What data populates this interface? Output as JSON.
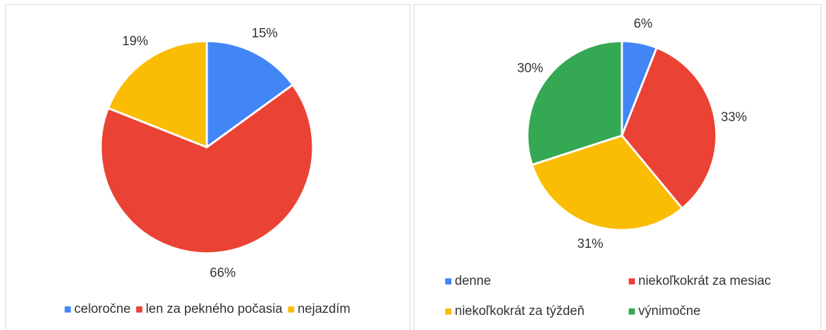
{
  "chart_data": [
    {
      "type": "pie",
      "legend": "bottom",
      "categories": [
        "celoročne",
        "len za pekného počasia",
        "nejazdím"
      ],
      "values": [
        15,
        66,
        19
      ],
      "value_labels": [
        "15%",
        "66%",
        "19%"
      ],
      "colors": [
        "#4285f4",
        "#ea4335",
        "#fbbc04"
      ]
    },
    {
      "type": "pie",
      "legend": "bottom",
      "categories": [
        "denne",
        "niekoľkokrát za mesiac",
        "niekoľkokrát za týždeň",
        "výnimočne"
      ],
      "values": [
        6,
        33,
        31,
        30
      ],
      "value_labels": [
        "6%",
        "33%",
        "31%",
        "30%"
      ],
      "colors": [
        "#4285f4",
        "#ea4335",
        "#fbbc04",
        "#34a853"
      ]
    }
  ]
}
